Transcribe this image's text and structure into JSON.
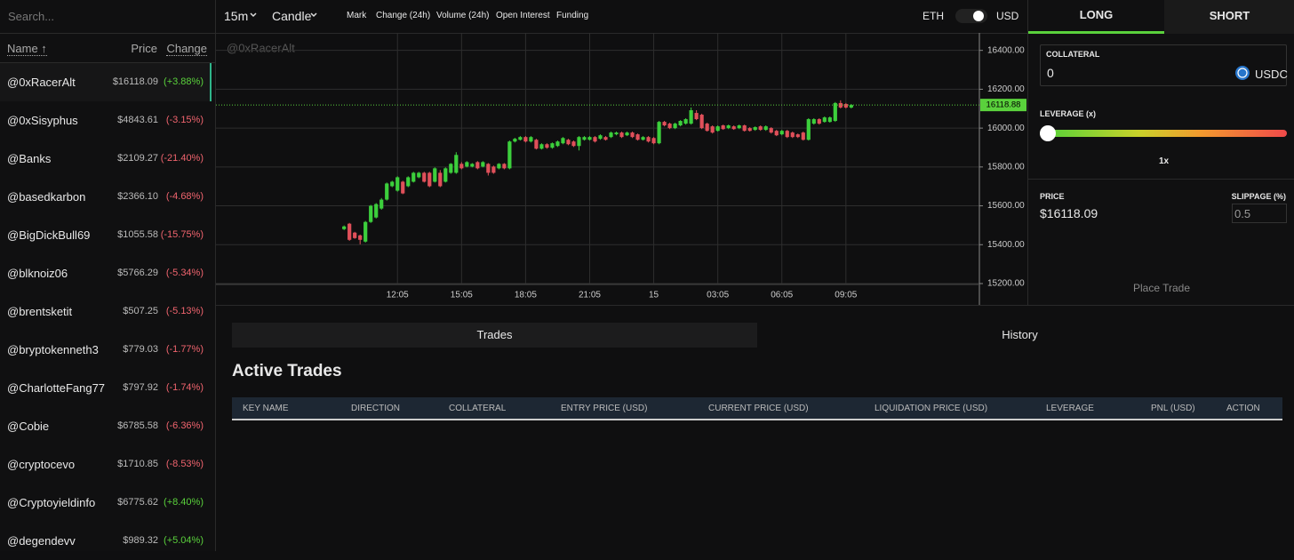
{
  "sidebar": {
    "search_placeholder": "Search...",
    "columns": [
      "Name ↑",
      "Price",
      "Change"
    ],
    "rows": [
      {
        "name": "@0xRacerAlt",
        "price": "$16118.09",
        "change": "(+3.88%)"
      },
      {
        "name": "@0xSisyphus",
        "price": "$4843.61",
        "change": "(-3.15%)"
      },
      {
        "name": "@Banks",
        "price": "$2109.27",
        "change": "(-21.40%)"
      },
      {
        "name": "@basedkarbon",
        "price": "$2366.10",
        "change": "(-4.68%)"
      },
      {
        "name": "@BigDickBull69",
        "price": "$1055.58",
        "change": "(-15.75%)"
      },
      {
        "name": "@blknoiz06",
        "price": "$5766.29",
        "change": "(-5.34%)"
      },
      {
        "name": "@brentsketit",
        "price": "$507.25",
        "change": "(-5.13%)"
      },
      {
        "name": "@bryptokenneth3",
        "price": "$779.03",
        "change": "(-1.77%)"
      },
      {
        "name": "@CharlotteFang77",
        "price": "$797.92",
        "change": "(-1.74%)"
      },
      {
        "name": "@Cobie",
        "price": "$6785.58",
        "change": "(-6.36%)"
      },
      {
        "name": "@cryptocevo",
        "price": "$1710.85",
        "change": "(-8.53%)"
      },
      {
        "name": "@Cryptoyieldinfo",
        "price": "$6775.62",
        "change": "(+8.40%)"
      },
      {
        "name": "@degendevv",
        "price": "$989.32",
        "change": "(+5.04%)"
      }
    ]
  },
  "toolbar": {
    "interval": "15m",
    "chart_style": "Candle",
    "items": [
      "Mark",
      "Change (24h)",
      "Volume (24h)",
      "Open Interest",
      "Funding"
    ],
    "toggle_left": "ETH",
    "toggle_right": "USD"
  },
  "chart_data": {
    "type": "candlestick",
    "watermark": "@0xRacerAlt",
    "up_color": "#3ccf3c",
    "down_color": "#e0505a",
    "grid": true,
    "open": [
      15480,
      15508,
      15462,
      15448,
      15416,
      15517,
      15540,
      15586,
      15632,
      15701,
      15678,
      15724,
      15701,
      15724,
      15747,
      15770,
      15770,
      15724,
      15770,
      15724,
      15770,
      15770,
      15816,
      15802,
      15802,
      15825,
      15802,
      15816,
      15802,
      15793,
      15816,
      15793,
      15931,
      15940,
      15954,
      15931,
      15940,
      15894,
      15917,
      15899,
      15908,
      15922,
      15940,
      15931,
      15908,
      15940,
      15940,
      15954,
      15945,
      15954,
      15954,
      15968,
      15977,
      15963,
      15977,
      15968,
      15940,
      15954,
      15949,
      15922,
      16032,
      16023,
      16000,
      16014,
      16023,
      16023,
      16078,
      16069,
      16023,
      16009,
      15986,
      16014,
      16000,
      16009,
      16000,
      16014,
      16000,
      15991,
      16009,
      15991,
      16000,
      15986,
      15968,
      15986,
      15977,
      15968,
      15977,
      15940,
      16023,
      16046,
      16032,
      16032,
      16037,
      16129,
      16124,
      16106
    ],
    "high": [
      15499,
      15512,
      15466,
      15452,
      15522,
      15605,
      15614,
      15640,
      15720,
      15729,
      15752,
      15729,
      15752,
      15775,
      15775,
      15775,
      15775,
      15798,
      15784,
      15798,
      15820,
      15876,
      15825,
      15830,
      15820,
      15830,
      15830,
      15820,
      15807,
      15820,
      15820,
      15936,
      15950,
      15959,
      15959,
      15959,
      15945,
      15922,
      15922,
      15926,
      15936,
      15954,
      15945,
      15936,
      15959,
      15959,
      15959,
      15959,
      15968,
      15959,
      15982,
      15982,
      15982,
      15982,
      15982,
      15972,
      15959,
      15959,
      15954,
      16037,
      16037,
      16028,
      16028,
      16041,
      16051,
      16106,
      16092,
      16074,
      16028,
      16014,
      16014,
      16018,
      16018,
      16014,
      16018,
      16018,
      16005,
      16009,
      16014,
      16014,
      16005,
      15991,
      15991,
      15991,
      15982,
      15972,
      15982,
      16051,
      16051,
      16051,
      16060,
      16060,
      16134,
      16143,
      16129,
      16124
    ],
    "low": [
      15475,
      15420,
      15430,
      15402,
      15411,
      15512,
      15535,
      15580,
      15627,
      15696,
      15673,
      15660,
      15696,
      15720,
      15742,
      15720,
      15696,
      15720,
      15696,
      15720,
      15765,
      15765,
      15788,
      15798,
      15798,
      15788,
      15798,
      15756,
      15765,
      15788,
      15788,
      15788,
      15926,
      15936,
      15926,
      15926,
      15890,
      15890,
      15894,
      15894,
      15903,
      15917,
      15912,
      15903,
      15885,
      15936,
      15936,
      15926,
      15940,
      15936,
      15949,
      15963,
      15949,
      15959,
      15949,
      15936,
      15936,
      15926,
      15917,
      15917,
      16009,
      15995,
      15995,
      16009,
      16018,
      16018,
      16041,
      15995,
      15982,
      15972,
      15982,
      15991,
      15995,
      15991,
      15995,
      15982,
      15982,
      15986,
      15986,
      15986,
      15972,
      15959,
      15963,
      15949,
      15949,
      15949,
      15936,
      15936,
      16018,
      16018,
      16028,
      16028,
      16032,
      16101,
      16101,
      16101
    ],
    "close": [
      15494,
      15425,
      15434,
      15425,
      15517,
      15600,
      15609,
      15632,
      15715,
      15724,
      15747,
      15664,
      15747,
      15770,
      15770,
      15724,
      15701,
      15793,
      15701,
      15793,
      15816,
      15862,
      15793,
      15825,
      15816,
      15793,
      15825,
      15770,
      15770,
      15816,
      15793,
      15931,
      15945,
      15954,
      15931,
      15954,
      15894,
      15917,
      15899,
      15922,
      15931,
      15949,
      15917,
      15908,
      15954,
      15954,
      15954,
      15931,
      15963,
      15940,
      15977,
      15977,
      15954,
      15977,
      15954,
      15940,
      15954,
      15931,
      15922,
      16032,
      16014,
      16000,
      16023,
      16037,
      16046,
      16092,
      16046,
      16000,
      15986,
      15977,
      16009,
      15995,
      16014,
      15995,
      16014,
      15986,
      15986,
      16005,
      15991,
      16009,
      15977,
      15963,
      15986,
      15954,
      15954,
      15954,
      15940,
      16046,
      16046,
      16023,
      16055,
      16055,
      16129,
      16106,
      16106,
      16118.88
    ],
    "xlim": [
      -24,
      119
    ],
    "xticks": [
      {
        "value": 10,
        "label": "12:05"
      },
      {
        "value": 22,
        "label": "15:05"
      },
      {
        "value": 34,
        "label": "18:05"
      },
      {
        "value": 46,
        "label": "21:05"
      },
      {
        "value": 58,
        "label": "15"
      },
      {
        "value": 70,
        "label": "03:05"
      },
      {
        "value": 82,
        "label": "06:05"
      },
      {
        "value": 94,
        "label": "09:05"
      }
    ],
    "ylim": [
      15200,
      16490
    ],
    "yticks": [
      {
        "value": 15200,
        "label": "15200.00"
      },
      {
        "value": 15400,
        "label": "15400.00"
      },
      {
        "value": 15600,
        "label": "15600.00"
      },
      {
        "value": 15800,
        "label": "15800.00"
      },
      {
        "value": 16000,
        "label": "16000.00"
      },
      {
        "value": 16200,
        "label": "16200.00"
      },
      {
        "value": 16400,
        "label": "16400.00"
      }
    ],
    "last_price": 16118.88,
    "last_price_color": "#5ad13c"
  },
  "trade_panel": {
    "tabs": [
      "LONG",
      "SHORT"
    ],
    "collateral_label": "COLLATERAL",
    "collateral_value": "0",
    "collateral_token": "USDC",
    "leverage_label": "LEVERAGE (x)",
    "leverage_value": "1x",
    "price_label": "PRICE",
    "price_value": "$16118.09",
    "slippage_label": "SLIPPAGE (%)",
    "slippage_value": "0.5",
    "button": "Place Trade"
  },
  "trades": {
    "tabs": [
      "Trades",
      "History"
    ],
    "title": "Active Trades",
    "columns": [
      "KEY NAME",
      "DIRECTION",
      "COLLATERAL",
      "ENTRY PRICE (USD)",
      "CURRENT PRICE (USD)",
      "LIQUIDATION PRICE (USD)",
      "LEVERAGE",
      "PNL (USD)",
      "ACTION"
    ]
  }
}
